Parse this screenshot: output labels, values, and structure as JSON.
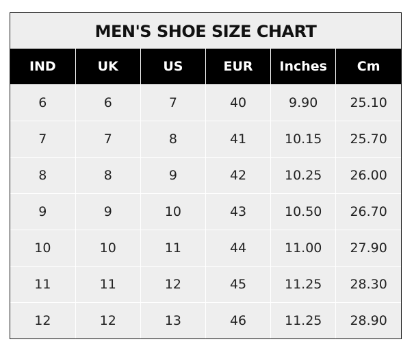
{
  "chart_data": {
    "type": "table",
    "title": "MEN'S SHOE SIZE CHART",
    "columns": [
      "IND",
      "UK",
      "US",
      "EUR",
      "Inches",
      "Cm"
    ],
    "rows": [
      [
        "6",
        "6",
        "7",
        "40",
        "9.90",
        "25.10"
      ],
      [
        "7",
        "7",
        "8",
        "41",
        "10.15",
        "25.70"
      ],
      [
        "8",
        "8",
        "9",
        "42",
        "10.25",
        "26.00"
      ],
      [
        "9",
        "9",
        "10",
        "43",
        "10.50",
        "26.70"
      ],
      [
        "10",
        "10",
        "11",
        "44",
        "11.00",
        "27.90"
      ],
      [
        "11",
        "11",
        "12",
        "45",
        "11.25",
        "28.30"
      ],
      [
        "12",
        "12",
        "13",
        "46",
        "11.25",
        "28.90"
      ]
    ],
    "colors": {
      "header_bg": "#000000",
      "header_text": "#ffffff",
      "cell_bg": "#eeeeee",
      "grid": "#ffffff"
    }
  }
}
